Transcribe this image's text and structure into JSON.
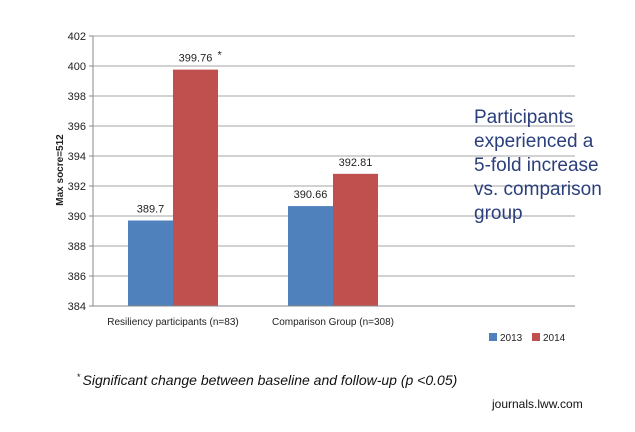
{
  "chart_data": {
    "type": "bar",
    "categories": [
      "Resiliency participants (n=83)",
      "Comparison Group (n=308)"
    ],
    "series": [
      {
        "name": "2013",
        "values": [
          389.7,
          390.66
        ],
        "labels": [
          "389.7",
          "390.66"
        ],
        "color": "#4f81bd"
      },
      {
        "name": "2014",
        "values": [
          399.76,
          392.81
        ],
        "labels": [
          "399.76",
          "392.81"
        ],
        "color": "#c0504d"
      }
    ],
    "ylabel": "Max socre=512",
    "xlabel": "",
    "ylim": [
      384,
      402
    ],
    "yticks": [
      "384",
      "386",
      "388",
      "390",
      "392",
      "394",
      "396",
      "398",
      "400",
      "402"
    ],
    "grid": true,
    "legend": "bottom-right",
    "significance_marker": "*"
  },
  "callout_lines": [
    "Participants",
    "experienced a",
    "5-fold increase",
    "vs. comparison",
    "group"
  ],
  "footnote": {
    "symbol": "*",
    "text": "Significant change between baseline and follow-up (p <0.05)"
  },
  "source": "journals.lww.com"
}
